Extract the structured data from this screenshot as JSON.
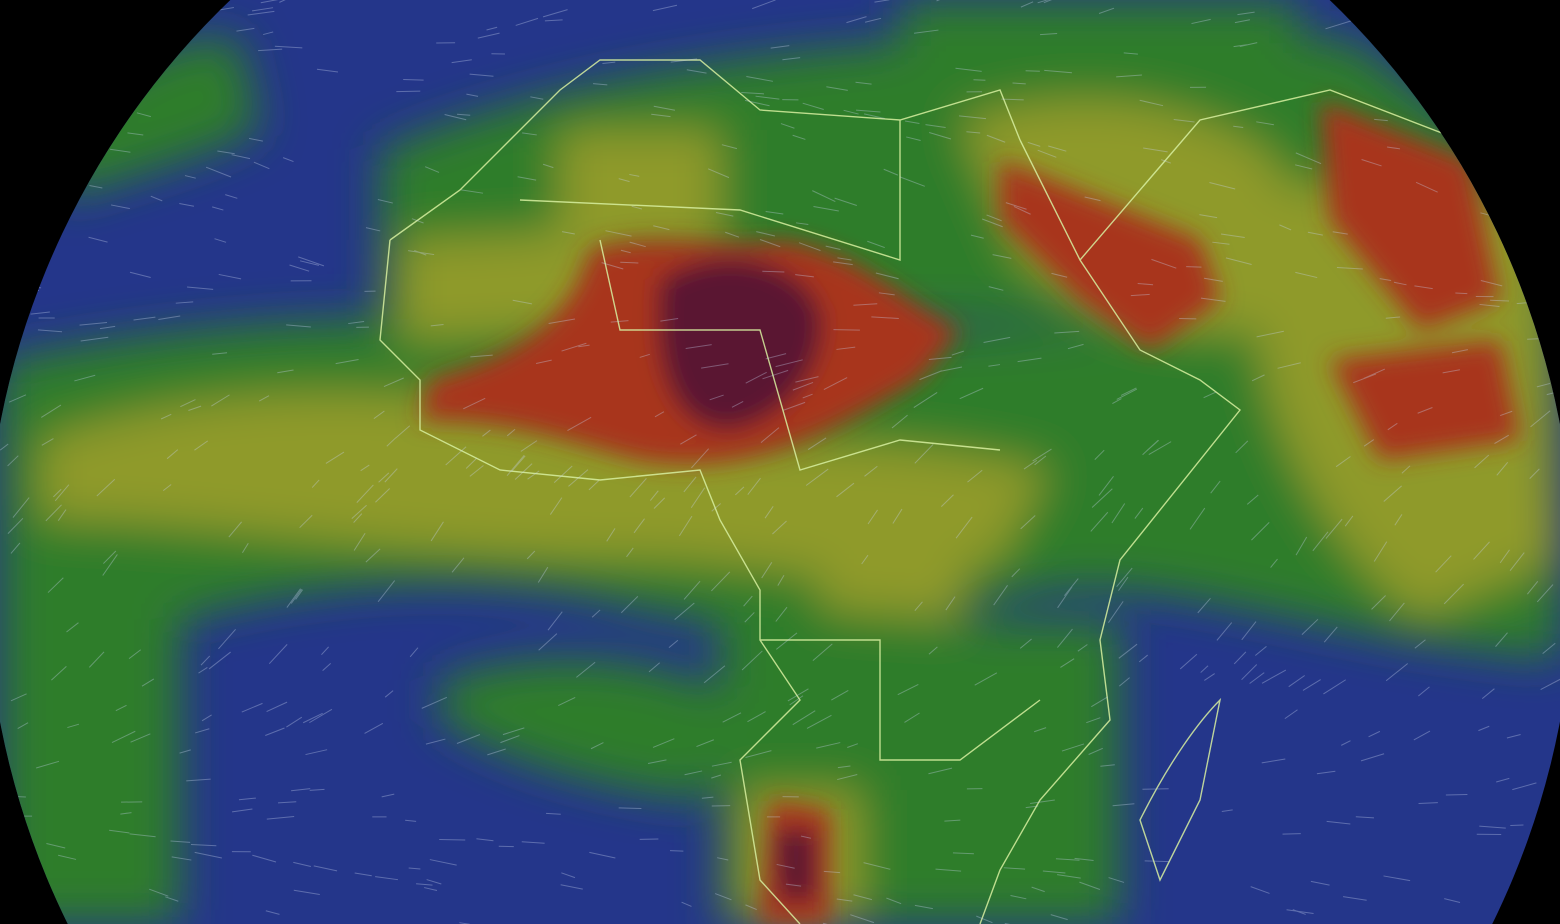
{
  "map": {
    "projection": "orthographic",
    "overlay_palette": {
      "ocean_low": "#24368a",
      "low": "#2f7d2a",
      "medium": "#8f9a2a",
      "high": "#a8361e",
      "very_high": "#5a1230"
    },
    "boundary_color": "#d8f0a0",
    "streamline_color": "#c8d4f0",
    "background": "#000000"
  }
}
